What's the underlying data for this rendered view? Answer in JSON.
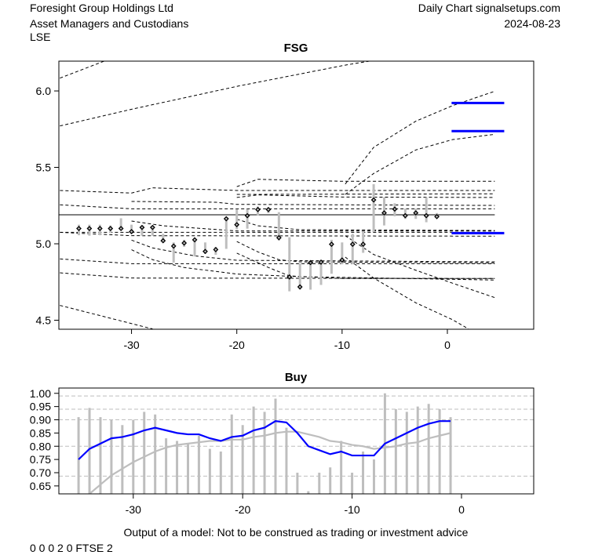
{
  "header": {
    "company": "Foresight Group Holdings Ltd",
    "sector": "Asset Managers and Custodians",
    "exchange": "LSE",
    "source": "Daily Chart signalsetups.com",
    "date": "2024-08-23"
  },
  "footer": {
    "disclaimer": "Output of a model: Not to be construed as trading or investment advice",
    "codes": "0 0 0 2 0 FTSE 2"
  },
  "colors": {
    "bars": "#bebebe",
    "blue": "#0000ff",
    "gray_line": "#bebebe",
    "grid": "#bebebe"
  },
  "chart_data": [
    {
      "type": "ohlc",
      "title": "FSG",
      "xlim": [
        -36.9,
        8.2
      ],
      "ylim": [
        4.441,
        6.195
      ],
      "x_ticks": [
        -30,
        -20,
        -10,
        0
      ],
      "x_tick_labels": [
        "-30",
        "-20",
        "-10",
        "0"
      ],
      "y_ticks": [
        4.5,
        5.0,
        5.5,
        6.0
      ],
      "y_tick_labels": [
        "4.5",
        "5.0",
        "5.5",
        "6.0"
      ],
      "reference_line": 5.19,
      "levels": [
        5.921,
        5.737,
        5.07
      ],
      "bars": [
        {
          "x": -35,
          "high": 5.125,
          "low": 5.056,
          "close": 5.1
        },
        {
          "x": -34,
          "high": 5.125,
          "low": 5.053,
          "close": 5.1
        },
        {
          "x": -33,
          "high": 5.125,
          "low": 5.056,
          "close": 5.1
        },
        {
          "x": -32,
          "high": 5.12,
          "low": 5.07,
          "close": 5.1
        },
        {
          "x": -31,
          "high": 5.167,
          "low": 5.09,
          "close": 5.1
        },
        {
          "x": -30,
          "high": 5.125,
          "low": 5.065,
          "close": 5.08
        },
        {
          "x": -29,
          "high": 5.12,
          "low": 5.053,
          "close": 5.107
        },
        {
          "x": -28,
          "high": 5.12,
          "low": 5.053,
          "close": 5.107
        },
        {
          "x": -27,
          "high": 5.065,
          "low": 5.009,
          "close": 5.02
        },
        {
          "x": -26,
          "high": 5.009,
          "low": 4.877,
          "close": 4.985
        },
        {
          "x": -25,
          "high": 5.026,
          "low": 4.98,
          "close": 5.005
        },
        {
          "x": -24,
          "high": 5.036,
          "low": 4.917,
          "close": 5.026
        },
        {
          "x": -23,
          "high": 5.009,
          "low": 4.934,
          "close": 4.95
        },
        {
          "x": -22,
          "high": 4.98,
          "low": 4.928,
          "close": 4.962
        },
        {
          "x": -21,
          "high": 5.173,
          "low": 4.967,
          "close": 5.164
        },
        {
          "x": -20,
          "high": 5.227,
          "low": 5.094,
          "close": 5.125
        },
        {
          "x": -19,
          "high": 5.227,
          "low": 5.099,
          "close": 5.184
        },
        {
          "x": -18,
          "high": 5.244,
          "low": 5.184,
          "close": 5.224
        },
        {
          "x": -17,
          "high": 5.235,
          "low": 5.201,
          "close": 5.224
        },
        {
          "x": -16,
          "high": 5.207,
          "low": 5.022,
          "close": 5.04
        },
        {
          "x": -15,
          "high": 5.043,
          "low": 4.689,
          "close": 4.783
        },
        {
          "x": -14,
          "high": 4.872,
          "low": 4.7,
          "close": 4.718
        },
        {
          "x": -13,
          "high": 4.88,
          "low": 4.7,
          "close": 4.877
        },
        {
          "x": -12,
          "high": 4.894,
          "low": 4.731,
          "close": 4.88
        },
        {
          "x": -11,
          "high": 5.026,
          "low": 4.804,
          "close": 4.997
        },
        {
          "x": -10,
          "high": 5.009,
          "low": 4.866,
          "close": 4.894
        },
        {
          "x": -9,
          "high": 5.065,
          "low": 4.866,
          "close": 4.997
        },
        {
          "x": -8,
          "high": 5.083,
          "low": 4.941,
          "close": 4.997
        },
        {
          "x": -7,
          "high": 5.39,
          "low": 5.077,
          "close": 5.287
        },
        {
          "x": -6,
          "high": 5.304,
          "low": 5.12,
          "close": 5.202
        },
        {
          "x": -5,
          "high": 5.265,
          "low": 5.18,
          "close": 5.227
        },
        {
          "x": -4,
          "high": 5.23,
          "low": 5.163,
          "close": 5.184
        },
        {
          "x": -3,
          "high": 5.23,
          "low": 5.163,
          "close": 5.202
        },
        {
          "x": -2,
          "high": 5.304,
          "low": 5.141,
          "close": 5.184
        },
        {
          "x": -1,
          "high": 5.201,
          "low": 5.167,
          "close": 5.178
        }
      ],
      "dashed_lines": [
        [
          [
            -36.8,
            6.084
          ],
          [
            -32.6,
            6.195
          ]
        ],
        [
          [
            -36.8,
            5.771
          ],
          [
            -30.07,
            5.879
          ],
          [
            -19.85,
            6.032
          ],
          [
            -9.7,
            6.169
          ],
          [
            -7.4,
            6.195
          ]
        ],
        [
          [
            -36.8,
            4.597
          ],
          [
            -28,
            4.443
          ]
        ],
        [
          [
            -36.8,
            5.349
          ],
          [
            -30,
            5.332
          ],
          [
            -28,
            5.366
          ],
          [
            -20,
            5.349
          ],
          [
            4.5,
            5.349
          ]
        ],
        [
          [
            -36.8,
            5.255
          ],
          [
            -30,
            5.229
          ],
          [
            4.5,
            5.229
          ]
        ],
        [
          [
            -30,
            5.277
          ],
          [
            -22,
            5.272
          ],
          [
            -20,
            5.258
          ],
          [
            4.5,
            5.251
          ]
        ],
        [
          [
            -20,
            5.374
          ],
          [
            -18,
            5.422
          ],
          [
            -10,
            5.409
          ],
          [
            4.5,
            5.409
          ]
        ],
        [
          [
            -20,
            5.303
          ],
          [
            -18,
            5.32
          ],
          [
            -10,
            5.306
          ],
          [
            4.5,
            5.303
          ]
        ],
        [
          [
            -20,
            5.323
          ],
          [
            4.5,
            5.327
          ]
        ],
        [
          [
            -36.8,
            5.075
          ],
          [
            -30,
            5.075
          ],
          [
            4.5,
            5.075
          ]
        ],
        [
          [
            -36.8,
            5.075
          ],
          [
            -30,
            5.053
          ],
          [
            4.5,
            5.05
          ]
        ],
        [
          [
            -20,
            5.161
          ],
          [
            -18,
            5.118
          ],
          [
            -14,
            5.092
          ],
          [
            4.5,
            5.087
          ]
        ],
        [
          [
            -30,
            5.149
          ],
          [
            -27,
            5.118
          ],
          [
            -20,
            5.084
          ],
          [
            4.5,
            5.084
          ]
        ],
        [
          [
            -36.8,
            4.901
          ],
          [
            -30,
            4.87
          ],
          [
            4.5,
            4.87
          ]
        ],
        [
          [
            -30,
            5.024
          ],
          [
            -28,
            4.973
          ],
          [
            -24,
            4.921
          ],
          [
            -20,
            4.892
          ],
          [
            4.5,
            4.882
          ]
        ],
        [
          [
            -36.8,
            4.81
          ],
          [
            -30,
            4.776
          ],
          [
            4.5,
            4.773
          ]
        ],
        [
          [
            -30,
            4.961
          ],
          [
            -28,
            4.896
          ],
          [
            -25,
            4.845
          ],
          [
            -20,
            4.802
          ],
          [
            -14,
            4.785
          ],
          [
            4.5,
            4.763
          ]
        ],
        [
          [
            -20,
            5.015
          ],
          [
            -18,
            4.947
          ],
          [
            -16,
            4.896
          ],
          [
            -14,
            4.882
          ],
          [
            4.5,
            4.875
          ]
        ],
        [
          [
            -20,
            4.939
          ],
          [
            -17,
            4.845
          ],
          [
            -15,
            4.79
          ],
          [
            -10,
            4.773
          ],
          [
            4.5,
            4.773
          ]
        ],
        [
          [
            -9.7,
            5.391
          ],
          [
            -7,
            5.631
          ],
          [
            -3,
            5.802
          ],
          [
            0.5,
            5.904
          ],
          [
            4.5,
            5.998
          ]
        ],
        [
          [
            -9.7,
            5.323
          ],
          [
            -7,
            5.46
          ],
          [
            -3,
            5.614
          ],
          [
            0.5,
            5.682
          ],
          [
            4.5,
            5.716
          ]
        ],
        [
          [
            -9.7,
            5.053
          ],
          [
            -7,
            4.93
          ],
          [
            -3,
            4.827
          ],
          [
            0.5,
            4.742
          ],
          [
            4.5,
            4.648
          ]
        ],
        [
          [
            -9.7,
            4.913
          ],
          [
            -7,
            4.776
          ],
          [
            -3,
            4.614
          ],
          [
            0.5,
            4.503
          ],
          [
            2,
            4.443
          ]
        ]
      ]
    },
    {
      "type": "bar+line",
      "title": "Buy",
      "xlim": [
        -36.8,
        6.6
      ],
      "ylim": [
        0.62,
        1.02
      ],
      "x_ticks": [
        -30,
        -20,
        -10,
        0
      ],
      "x_tick_labels": [
        "-30",
        "-20",
        "-10",
        "0"
      ],
      "y_ticks": [
        0.65,
        0.7,
        0.75,
        0.8,
        0.85,
        0.9,
        0.95,
        1.0
      ],
      "y_tick_labels": [
        "0.65",
        "0.70",
        "0.75",
        "0.80",
        "0.85",
        "0.90",
        "0.95",
        "1.00"
      ],
      "grid_lines": [
        0.99,
        0.94,
        0.9,
        0.8,
        0.687
      ],
      "x": [
        -35,
        -34,
        -33,
        -32,
        -31,
        -30,
        -29,
        -28,
        -27,
        -26,
        -25,
        -24,
        -23,
        -22,
        -21,
        -20,
        -19,
        -18,
        -17,
        -16,
        -15,
        -14,
        -13,
        -12,
        -11,
        -10,
        -9,
        -8,
        -7,
        -6,
        -5,
        -4,
        -3,
        -2,
        -1
      ],
      "bars": [
        0.91,
        0.945,
        0.91,
        0.9,
        0.88,
        0.9,
        0.93,
        0.92,
        0.83,
        0.82,
        0.81,
        0.84,
        0.79,
        0.78,
        0.92,
        0.88,
        0.95,
        0.93,
        0.98,
        0.87,
        0.7,
        0.63,
        0.7,
        0.72,
        0.82,
        0.7,
        0.78,
        0.75,
        1.0,
        0.94,
        0.93,
        0.95,
        0.96,
        0.94,
        0.91
      ],
      "series": [
        {
          "color": "#0000ff",
          "values": [
            0.75,
            0.79,
            0.81,
            0.83,
            0.835,
            0.845,
            0.86,
            0.87,
            0.86,
            0.85,
            0.845,
            0.845,
            0.83,
            0.82,
            0.835,
            0.84,
            0.86,
            0.87,
            0.895,
            0.89,
            0.85,
            0.8,
            0.785,
            0.77,
            0.78,
            0.765,
            0.765,
            0.765,
            0.81,
            0.83,
            0.85,
            0.87,
            0.885,
            0.895,
            0.895
          ]
        },
        {
          "color": "#bebebe",
          "values": [
            0.59,
            0.62,
            0.655,
            0.69,
            0.715,
            0.74,
            0.76,
            0.78,
            0.795,
            0.805,
            0.81,
            0.815,
            0.82,
            0.82,
            0.825,
            0.825,
            0.835,
            0.84,
            0.85,
            0.855,
            0.855,
            0.845,
            0.835,
            0.82,
            0.815,
            0.805,
            0.8,
            0.79,
            0.795,
            0.8,
            0.81,
            0.815,
            0.83,
            0.84,
            0.85
          ]
        }
      ]
    }
  ]
}
